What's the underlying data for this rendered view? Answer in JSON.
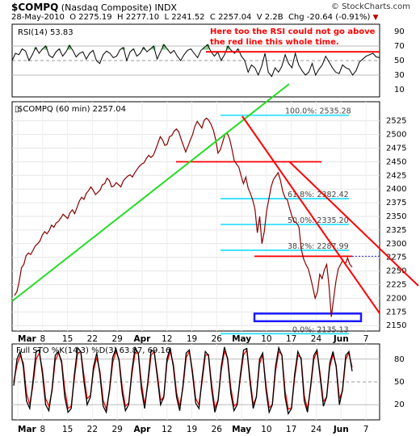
{
  "header": {
    "symbol": "$COMPQ",
    "name": "(Nasdaq Composite) INDX",
    "site": "© StockCharts.com",
    "quote_date": "28-May-2010",
    "open": "O 2275.19",
    "high": "H 2277.10",
    "low": "L 2241.52",
    "close": "C 2257.04",
    "volume": "V 2.2B",
    "change": "Chg -20.64 (-0.91%)",
    "change_marker": "▼"
  },
  "annotation": "Here too the RSI could not go above the red line this whole time.",
  "colors": {
    "price": "#8b0000",
    "trend_red": "#ff0000",
    "trend_green": "#22dd22",
    "fib": "#33e0ff",
    "support_box": "#1a1aff",
    "sto_k": "#000000",
    "sto_d": "#ff0000",
    "rsi_fill": "#4caf50"
  },
  "chart_data": [
    {
      "type": "line",
      "title": "RSI(14) 53.83",
      "ylim": [
        0,
        100
      ],
      "yticks": [
        "90",
        "70",
        "50",
        "30",
        "10"
      ],
      "reference_line": 62,
      "values": [
        50,
        60,
        58,
        66,
        63,
        50,
        58,
        68,
        60,
        66,
        70,
        57,
        54,
        62,
        66,
        56,
        62,
        71,
        64,
        55,
        60,
        62,
        52,
        60,
        64,
        50,
        46,
        58,
        63,
        60,
        54,
        56,
        65,
        68,
        50,
        62,
        66,
        56,
        60,
        68,
        62,
        66,
        70,
        52,
        62,
        72,
        66,
        60,
        64,
        56,
        50,
        58,
        64,
        66,
        60,
        54,
        64,
        68,
        72,
        62,
        56,
        62,
        50,
        58,
        70,
        64,
        60,
        66,
        56,
        50,
        34,
        44,
        40,
        30,
        42,
        60,
        34,
        28,
        40,
        34,
        42,
        58,
        46,
        40,
        60,
        44,
        36,
        30,
        34,
        46,
        30,
        38,
        44,
        56,
        48,
        40,
        34,
        32,
        44,
        40,
        38,
        30,
        36,
        48,
        52,
        56,
        58,
        60,
        55,
        54
      ]
    },
    {
      "type": "line",
      "title": "$COMPQ (60 min) 2257.04",
      "ylim": [
        2140,
        2560
      ],
      "yticks": [
        "2525",
        "2500",
        "2475",
        "2450",
        "2425",
        "2400",
        "2375",
        "2350",
        "2325",
        "2300",
        "2275",
        "2250",
        "2225",
        "2200",
        "2175",
        "2150"
      ],
      "xticks": [
        "Mar",
        "8",
        "15",
        "22",
        "29",
        "Apr",
        "12",
        "19",
        "26",
        "May",
        "10",
        "17",
        "24",
        "Jun",
        "7"
      ],
      "fib_levels": [
        {
          "label": "100.0%: 2535.28",
          "value": 2535.28
        },
        {
          "label": "61.8%: 2382.42",
          "value": 2382.42
        },
        {
          "label": "50.0%: 2335.20",
          "value": 2335.2
        },
        {
          "label": "38.2%: 2287.99",
          "value": 2287.99
        },
        {
          "label": "0.0%: 2135.13",
          "value": 2135.13
        }
      ],
      "horizontal_lines": [
        2450,
        2277
      ],
      "support_zone": [
        2158,
        2172
      ],
      "close_marker": 2277,
      "values": [
        2205,
        2212,
        2230,
        2256,
        2262,
        2278,
        2283,
        2280,
        2288,
        2296,
        2300,
        2305,
        2316,
        2322,
        2318,
        2324,
        2334,
        2330,
        2338,
        2341,
        2347,
        2354,
        2350,
        2346,
        2357,
        2362,
        2355,
        2366,
        2378,
        2385,
        2381,
        2392,
        2397,
        2404,
        2398,
        2390,
        2394,
        2398,
        2408,
        2410,
        2420,
        2416,
        2404,
        2406,
        2412,
        2408,
        2404,
        2415,
        2420,
        2424,
        2426,
        2422,
        2430,
        2436,
        2442,
        2446,
        2448,
        2456,
        2462,
        2458,
        2462,
        2472,
        2484,
        2496,
        2490,
        2480,
        2482,
        2496,
        2498,
        2506,
        2510,
        2505,
        2492,
        2480,
        2468,
        2478,
        2490,
        2500,
        2515,
        2524,
        2518,
        2512,
        2526,
        2530,
        2526,
        2518,
        2508,
        2490,
        2466,
        2472,
        2486,
        2500,
        2502,
        2492,
        2474,
        2452,
        2446,
        2440,
        2424,
        2410,
        2422,
        2402,
        2392,
        2380,
        2362,
        2320,
        2350,
        2300,
        2322,
        2360,
        2382,
        2405,
        2418,
        2424,
        2430,
        2416,
        2396,
        2384,
        2380,
        2364,
        2350,
        2340,
        2338,
        2330,
        2290,
        2272,
        2262,
        2254,
        2238,
        2220,
        2200,
        2212,
        2244,
        2236,
        2252,
        2262,
        2222,
        2166,
        2200,
        2232,
        2254,
        2262,
        2270,
        2262,
        2274,
        2262,
        2257
      ]
    },
    {
      "type": "line",
      "title": "Full STO %K(14,3) %D(3) 63.87, 69.16",
      "ylim": [
        0,
        100
      ],
      "yticks": [
        "80",
        "50",
        "20"
      ],
      "xticks": [
        "Mar",
        "8",
        "15",
        "22",
        "29",
        "Apr",
        "12",
        "19",
        "26",
        "May",
        "10",
        "17",
        "24",
        "Jun",
        "7"
      ],
      "series": [
        {
          "name": "%K",
          "values": [
            45,
            80,
            90,
            70,
            25,
            15,
            50,
            90,
            92,
            60,
            20,
            12,
            40,
            85,
            90,
            75,
            30,
            10,
            15,
            60,
            95,
            90,
            50,
            20,
            30,
            70,
            88,
            60,
            18,
            10,
            40,
            82,
            94,
            78,
            35,
            12,
            20,
            65,
            95,
            88,
            40,
            15,
            50,
            92,
            90,
            55,
            20,
            30,
            80,
            95,
            70,
            30,
            12,
            45,
            88,
            92,
            60,
            22,
            15,
            55,
            90,
            85,
            40,
            10,
            25,
            70,
            96,
            80,
            35,
            12,
            20,
            60,
            92,
            94,
            50,
            15,
            30,
            80,
            88,
            40,
            10,
            20,
            70,
            95,
            85,
            30,
            8,
            15,
            60,
            90,
            80,
            25,
            10,
            45,
            85,
            92,
            55,
            18,
            30,
            75,
            90,
            70,
            20,
            40,
            85,
            90,
            64
          ]
        },
        {
          "name": "%D",
          "values": [
            50,
            72,
            85,
            75,
            35,
            20,
            45,
            80,
            88,
            65,
            28,
            18,
            38,
            78,
            88,
            78,
            40,
            15,
            18,
            55,
            88,
            90,
            58,
            28,
            32,
            65,
            82,
            64,
            26,
            14,
            38,
            75,
            90,
            80,
            42,
            18,
            22,
            60,
            88,
            88,
            48,
            20,
            46,
            85,
            90,
            60,
            26,
            30,
            75,
            90,
            74,
            36,
            18,
            42,
            82,
            90,
            64,
            28,
            20,
            50,
            85,
            86,
            46,
            16,
            26,
            65,
            90,
            82,
            42,
            18,
            22,
            56,
            86,
            92,
            56,
            20,
            30,
            74,
            86,
            46,
            16,
            20,
            64,
            90,
            86,
            38,
            14,
            16,
            55,
            85,
            82,
            32,
            14,
            42,
            80,
            90,
            60,
            24,
            30,
            70,
            86,
            72,
            28,
            38,
            80,
            88,
            69
          ]
        }
      ]
    }
  ]
}
